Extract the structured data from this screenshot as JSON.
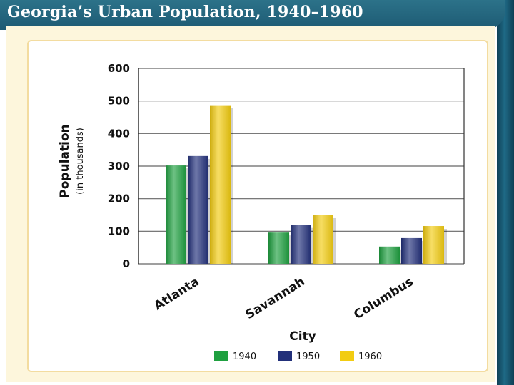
{
  "slide": {
    "title": "Georgia’s Urban Population, 1940–1960"
  },
  "colors": {
    "title_bar": "#1f5f78",
    "panel": "#fdf6dc",
    "card_border": "#f3dca0"
  },
  "chart_data": {
    "type": "bar",
    "title": "Georgia’s Urban Population, 1940–1960",
    "xlabel": "City",
    "ylabel": "Population",
    "ylabel_sub": "(in thousands)",
    "categories": [
      "Atlanta",
      "Savannah",
      "Columbus"
    ],
    "series": [
      {
        "name": "1940",
        "color": "#1fa040",
        "values": [
          302,
          96,
          53
        ]
      },
      {
        "name": "1950",
        "color": "#22307a",
        "values": [
          331,
          119,
          79
        ]
      },
      {
        "name": "1960",
        "color": "#f2cc12",
        "values": [
          487,
          149,
          116
        ]
      }
    ],
    "ylim": [
      0,
      600
    ],
    "yticks": [
      "0",
      "100",
      "200",
      "300",
      "400",
      "500",
      "600"
    ],
    "grid": true,
    "legend_position": "bottom"
  }
}
